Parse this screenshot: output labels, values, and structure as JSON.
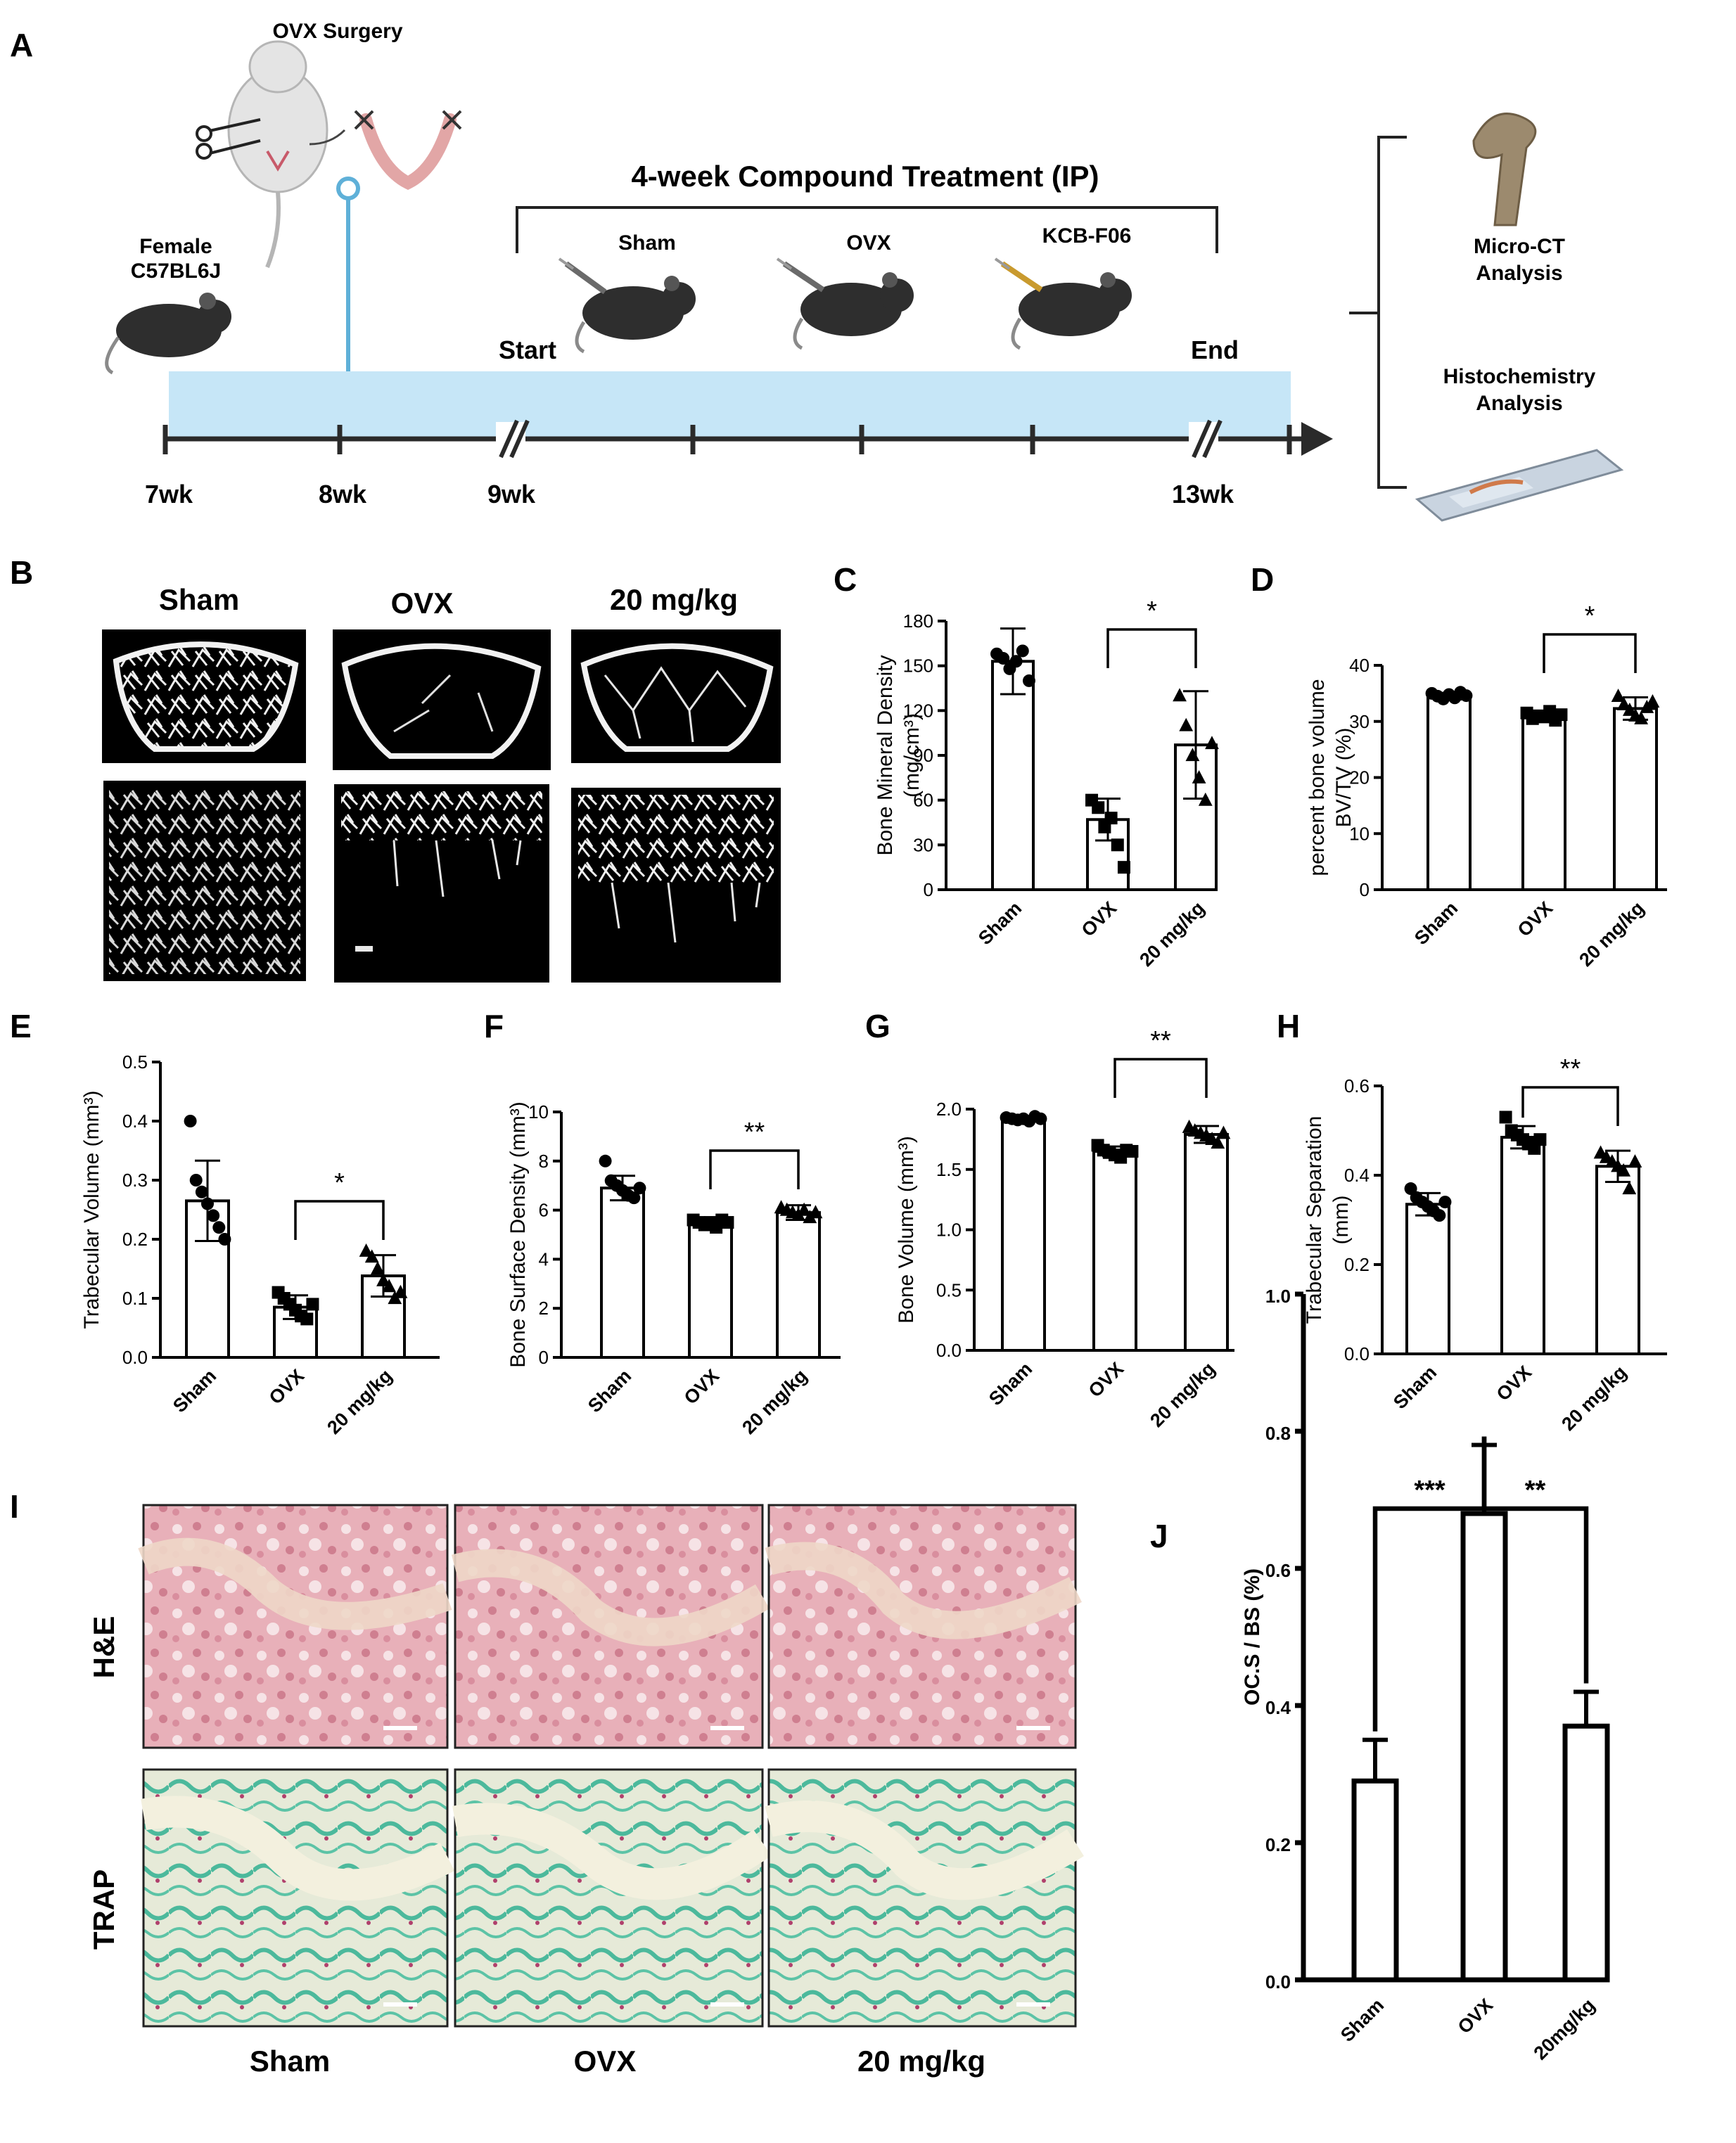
{
  "panels": {
    "A": {
      "letter": "A",
      "surgery_label": "OVX Surgery",
      "mouse_label_line1": "Female",
      "mouse_label_line2": "C57BL6J",
      "treatment_label": "4-week Compound Treatment (IP)",
      "groups": [
        "Sham",
        "OVX",
        "KCB-F06"
      ],
      "start_label": "Start",
      "end_label": "End",
      "week_labels": [
        "7wk",
        "8wk",
        "9wk",
        "13wk"
      ],
      "outcome1_line1": "Micro-CT",
      "outcome1_line2": "Analysis",
      "outcome2_line1": "Histochemistry",
      "outcome2_line2": "Analysis"
    },
    "B": {
      "letter": "B",
      "columns": [
        "Sham",
        "OVX",
        "20 mg/kg"
      ]
    },
    "I": {
      "letter": "I",
      "rows": [
        "H&E",
        "TRAP"
      ],
      "columns": [
        "Sham",
        "OVX",
        "20 mg/kg"
      ]
    }
  },
  "colors": {
    "timeline_band": "#c6e6f7",
    "timeline_axis": "#2a2a2a",
    "surgery_marker": "#5fb0d8",
    "mouse": "#2e2e2e",
    "he_stain": "#e2a3ad",
    "trap_stain": "#49b89b",
    "trap_cartilage": "#dde6cc"
  },
  "chart_data": [
    {
      "id": "C",
      "letter": "C",
      "type": "bar",
      "categories": [
        "Sham",
        "OVX",
        "20 mg/kg"
      ],
      "values": [
        153,
        47,
        97
      ],
      "errors": [
        22,
        14,
        36
      ],
      "points": [
        [
          158,
          155,
          148,
          153,
          160,
          140
        ],
        [
          60,
          55,
          42,
          48,
          30,
          15
        ],
        [
          130,
          110,
          90,
          75,
          60,
          98
        ]
      ],
      "markers": [
        "circle",
        "square",
        "triangle"
      ],
      "ylabel_line1": "Bone Mineral Density",
      "ylabel_line2": "(mg/cm³)",
      "ylim": [
        0,
        180
      ],
      "yticks": [
        "0",
        "30",
        "60",
        "90",
        "120",
        "150",
        "180"
      ],
      "significance": [
        {
          "from": 1,
          "to": 2,
          "label": "*"
        }
      ]
    },
    {
      "id": "D",
      "letter": "D",
      "type": "bar",
      "categories": [
        "Sham",
        "OVX",
        "20 mg/kg"
      ],
      "values": [
        34.5,
        31.0,
        32.3
      ],
      "errors": [
        0.6,
        0.8,
        2.0
      ],
      "points": [
        [
          35,
          34.5,
          34,
          34.8,
          34.2,
          35.2,
          34.6
        ],
        [
          31.5,
          30.5,
          31,
          30.8,
          31.8,
          30.2,
          31.2
        ],
        [
          34.5,
          33,
          32,
          31,
          30.5,
          32.5,
          33.5
        ]
      ],
      "markers": [
        "circle",
        "square",
        "triangle"
      ],
      "ylabel_line1": "percent bone volume",
      "ylabel_line2": "BV/TV (%)",
      "ylim": [
        0,
        40
      ],
      "yticks": [
        "0",
        "10",
        "20",
        "30",
        "40"
      ],
      "significance": [
        {
          "from": 1,
          "to": 2,
          "label": "*"
        }
      ]
    },
    {
      "id": "E",
      "letter": "E",
      "type": "bar",
      "categories": [
        "Sham",
        "OVX",
        "20 mg/kg"
      ],
      "values": [
        0.265,
        0.085,
        0.138
      ],
      "errors": [
        0.068,
        0.02,
        0.035
      ],
      "points": [
        [
          0.4,
          0.3,
          0.28,
          0.26,
          0.24,
          0.22,
          0.2
        ],
        [
          0.11,
          0.1,
          0.09,
          0.08,
          0.07,
          0.065,
          0.09
        ],
        [
          0.18,
          0.17,
          0.15,
          0.13,
          0.12,
          0.1,
          0.11
        ]
      ],
      "markers": [
        "circle",
        "square",
        "triangle"
      ],
      "ylabel_line1": "Trabecular Volume (mm³)",
      "ylabel_line2": "",
      "ylim": [
        0,
        0.5
      ],
      "yticks": [
        "0.0",
        "0.1",
        "0.2",
        "0.3",
        "0.4",
        "0.5"
      ],
      "significance": [
        {
          "from": 1,
          "to": 2,
          "label": "*"
        }
      ]
    },
    {
      "id": "F",
      "letter": "F",
      "type": "bar",
      "categories": [
        "Sham",
        "OVX",
        "20 mg/kg"
      ],
      "values": [
        6.9,
        5.5,
        5.9
      ],
      "errors": [
        0.5,
        0.2,
        0.3
      ],
      "points": [
        [
          8.0,
          7.2,
          7.0,
          6.8,
          6.6,
          6.5,
          6.9
        ],
        [
          5.6,
          5.5,
          5.4,
          5.5,
          5.3,
          5.6,
          5.5
        ],
        [
          6.1,
          6.0,
          5.9,
          5.8,
          6.0,
          5.7,
          5.9
        ]
      ],
      "markers": [
        "circle",
        "square",
        "triangle"
      ],
      "ylabel_line1": "Bone Surface Density (mm³)",
      "ylabel_line2": "",
      "ylim": [
        0,
        10
      ],
      "yticks": [
        "0",
        "2",
        "4",
        "6",
        "8",
        "10"
      ],
      "significance": [
        {
          "from": 1,
          "to": 2,
          "label": "**"
        }
      ]
    },
    {
      "id": "G",
      "letter": "G",
      "type": "bar",
      "categories": [
        "Sham",
        "OVX",
        "20 mg/kg"
      ],
      "values": [
        1.92,
        1.65,
        1.79
      ],
      "errors": [
        0.02,
        0.04,
        0.07
      ],
      "points": [
        [
          1.93,
          1.92,
          1.91,
          1.92,
          1.9,
          1.94,
          1.92
        ],
        [
          1.7,
          1.66,
          1.64,
          1.62,
          1.6,
          1.66,
          1.65
        ],
        [
          1.85,
          1.82,
          1.8,
          1.78,
          1.75,
          1.72,
          1.8
        ]
      ],
      "markers": [
        "circle",
        "square",
        "triangle"
      ],
      "ylabel_line1": "Bone Volume (mm³)",
      "ylabel_line2": "",
      "ylim": [
        0,
        2.0
      ],
      "yticks": [
        "0.0",
        "0.5",
        "1.0",
        "1.5",
        "2.0"
      ],
      "significance": [
        {
          "from": 1,
          "to": 2,
          "label": "**"
        }
      ]
    },
    {
      "id": "H",
      "letter": "H",
      "type": "bar",
      "categories": [
        "Sham",
        "OVX",
        "20 mg/kg"
      ],
      "values": [
        0.335,
        0.485,
        0.42
      ],
      "errors": [
        0.025,
        0.025,
        0.035
      ],
      "points": [
        [
          0.37,
          0.35,
          0.34,
          0.33,
          0.32,
          0.31,
          0.34
        ],
        [
          0.53,
          0.5,
          0.49,
          0.48,
          0.47,
          0.46,
          0.48
        ],
        [
          0.45,
          0.44,
          0.43,
          0.42,
          0.41,
          0.37,
          0.43
        ]
      ],
      "markers": [
        "circle",
        "square",
        "triangle"
      ],
      "ylabel_line1": "Trabecular Separation",
      "ylabel_line2": "(mm)",
      "ylim": [
        0,
        0.6
      ],
      "yticks": [
        "0.0",
        "0.2",
        "0.4",
        "0.6"
      ],
      "significance": [
        {
          "from": 1,
          "to": 2,
          "label": "**"
        }
      ]
    },
    {
      "id": "J",
      "letter": "J",
      "type": "bar",
      "categories": [
        "Sham",
        "OVX",
        "20mg/kg"
      ],
      "values": [
        0.29,
        0.68,
        0.37
      ],
      "errors": [
        0.06,
        0.1,
        0.05
      ],
      "points": [],
      "markers": [],
      "ylabel_line1": "OC.S / BS (%)",
      "ylabel_line2": "",
      "ylim": [
        0,
        1.0
      ],
      "yticks": [
        "0.0",
        "0.2",
        "0.4",
        "0.6",
        "0.8",
        "1.0"
      ],
      "significance": [
        {
          "from": 0,
          "to": 1,
          "label": "***"
        },
        {
          "from": 1,
          "to": 2,
          "label": "**"
        }
      ]
    }
  ]
}
